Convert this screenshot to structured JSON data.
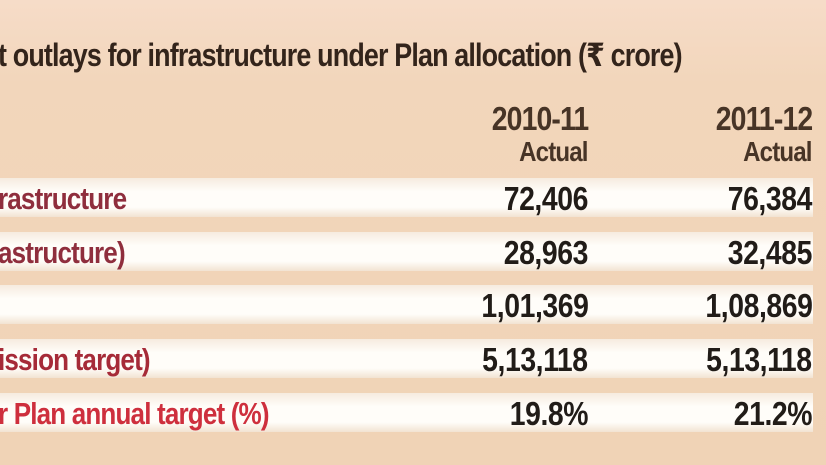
{
  "title": "t outlays for infrastructure under Plan allocation (₹ crore)",
  "chart_data": {
    "type": "table",
    "title": "t outlays for infrastructure under Plan allocation (₹ crore)",
    "columns": [
      {
        "year": "2010-11",
        "sub": "Actual"
      },
      {
        "year": "2011-12",
        "sub": "Actual"
      }
    ],
    "rows": [
      {
        "label": "rastructure",
        "values": [
          "72,406",
          "76,384"
        ]
      },
      {
        "label": "astructure)",
        "values": [
          "28,963",
          "32,485"
        ]
      },
      {
        "label": "",
        "values": [
          "1,01,369",
          "1,08,869"
        ]
      },
      {
        "label": "ission target)",
        "values": [
          "5,13,118",
          "5,13,118"
        ]
      },
      {
        "label": "r Plan annual target (%)",
        "values": [
          "19.8%",
          "21.2%"
        ]
      }
    ],
    "layout": {
      "note": "left side of infographic cropped out; row labels truncated",
      "row_stripe_color": "#fffdf9",
      "background_color": "#f0d3b6"
    }
  },
  "colors": {
    "background": "#f0d3b6",
    "stripe": "#fffdf9",
    "title_text": "#33241b",
    "header_text": "#473426",
    "value_text": "#211c18",
    "label_maroon": "#8f2e3d",
    "label_darkred": "#a62b38",
    "label_red": "#ce2f3d"
  }
}
